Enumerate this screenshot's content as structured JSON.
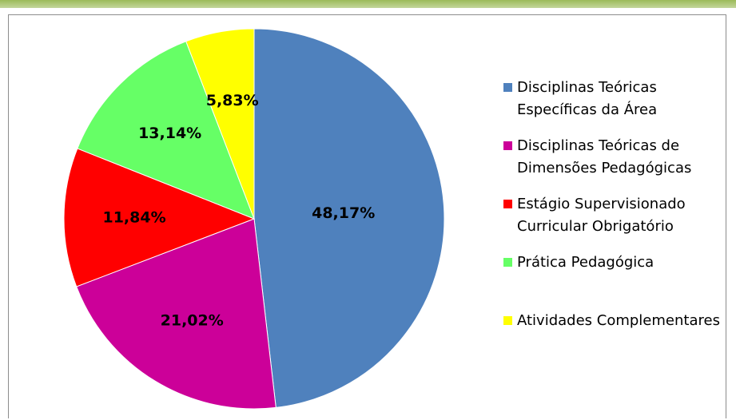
{
  "chart_data": {
    "type": "pie",
    "categories": [
      "Disciplinas Teóricas Específicas da Área",
      "Disciplinas Teóricas de Dimensões Pedagógicas",
      "Estágio Supervisionado Curricular Obrigatório",
      "Prática Pedagógica",
      "Atividades Complementares"
    ],
    "values": [
      48.17,
      21.02,
      11.84,
      13.14,
      5.83
    ],
    "value_labels": [
      "48,17%",
      "21,02%",
      "11,84%",
      "13,14%",
      "5,83%"
    ],
    "colors": [
      "#4f81bd",
      "#cc0099",
      "#ff0000",
      "#66ff66",
      "#ffff00"
    ],
    "legend": "right"
  }
}
